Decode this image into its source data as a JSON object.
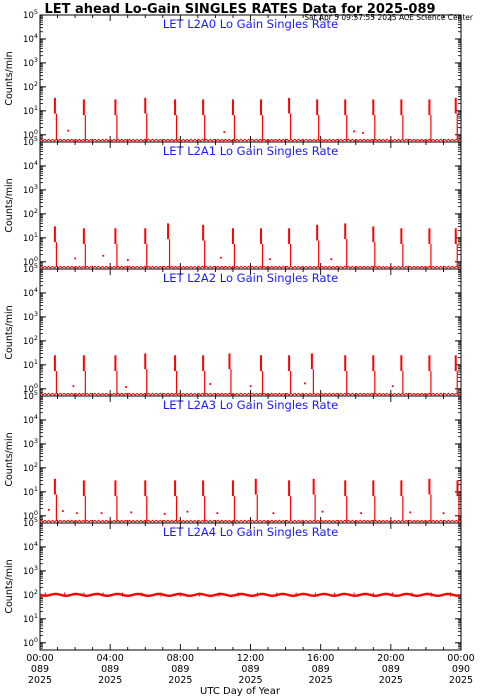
{
  "title": "LET ahead Lo-Gain SINGLES RATES Data for 2025-089",
  "timestamp": "Sat Apr  5 09:57:55 2025 ACE Science Center",
  "ylabel": "Counts/min",
  "xlabel": "UTC Day of Year",
  "colors": {
    "series": "#ff0000",
    "panel_title": "#1a1aff",
    "axis": "#000000"
  },
  "x_ticks": [
    {
      "time": "00:00",
      "day": "089",
      "year": "2025",
      "hour": 0
    },
    {
      "time": "04:00",
      "day": "089",
      "year": "2025",
      "hour": 4
    },
    {
      "time": "08:00",
      "day": "089",
      "year": "2025",
      "hour": 8
    },
    {
      "time": "12:00",
      "day": "089",
      "year": "2025",
      "hour": 12
    },
    {
      "time": "16:00",
      "day": "089",
      "year": "2025",
      "hour": 16
    },
    {
      "time": "20:00",
      "day": "089",
      "year": "2025",
      "hour": 20
    },
    {
      "time": "00:00",
      "day": "090",
      "year": "2025",
      "hour": 24
    }
  ],
  "chart_data": [
    {
      "type": "scatter",
      "title": "LET L2A0 Lo Gain Singles Rate",
      "x_unit": "hour of day 089 (UTC)",
      "y_scale": "log",
      "ylim": [
        0.5,
        100000
      ],
      "y_tick_labels": [
        "10^0",
        "10^1",
        "10^2",
        "10^3",
        "10^4",
        "10^5"
      ],
      "baseline": 0.6,
      "spikes": [
        {
          "hour": 0.85,
          "top": 35
        },
        {
          "hour": 2.5,
          "top": 30
        },
        {
          "hour": 4.3,
          "top": 30
        },
        {
          "hour": 6.0,
          "top": 35
        },
        {
          "hour": 7.7,
          "top": 30
        },
        {
          "hour": 9.3,
          "top": 30
        },
        {
          "hour": 11.0,
          "top": 30
        },
        {
          "hour": 12.6,
          "top": 30
        },
        {
          "hour": 14.2,
          "top": 35
        },
        {
          "hour": 15.8,
          "top": 30
        },
        {
          "hour": 17.4,
          "top": 30
        },
        {
          "hour": 19.0,
          "top": 30
        },
        {
          "hour": 20.6,
          "top": 30
        },
        {
          "hour": 22.2,
          "top": 30
        },
        {
          "hour": 23.7,
          "top": 35
        }
      ],
      "scatter": [
        {
          "hour": 1.6,
          "y": 1.5
        },
        {
          "hour": 10.5,
          "y": 1.3
        },
        {
          "hour": 17.9,
          "y": 1.4
        },
        {
          "hour": 18.4,
          "y": 1.2
        }
      ]
    },
    {
      "type": "scatter",
      "title": "LET L2A1 Lo Gain Singles Rate",
      "x_unit": "hour of day 089 (UTC)",
      "y_scale": "log",
      "ylim": [
        0.5,
        100000
      ],
      "y_tick_labels": [
        "10^0",
        "10^1",
        "10^2",
        "10^3",
        "10^4",
        "10^5"
      ],
      "baseline": 0.6,
      "spikes": [
        {
          "hour": 0.85,
          "top": 30
        },
        {
          "hour": 2.5,
          "top": 25
        },
        {
          "hour": 4.3,
          "top": 25
        },
        {
          "hour": 6.0,
          "top": 25
        },
        {
          "hour": 7.3,
          "top": 40
        },
        {
          "hour": 9.3,
          "top": 35
        },
        {
          "hour": 11.0,
          "top": 25
        },
        {
          "hour": 12.6,
          "top": 25
        },
        {
          "hour": 14.2,
          "top": 25
        },
        {
          "hour": 15.8,
          "top": 35
        },
        {
          "hour": 17.4,
          "top": 40
        },
        {
          "hour": 19.0,
          "top": 30
        },
        {
          "hour": 20.6,
          "top": 25
        },
        {
          "hour": 22.2,
          "top": 25
        },
        {
          "hour": 23.7,
          "top": 25
        }
      ],
      "scatter": [
        {
          "hour": 2.0,
          "y": 1.4
        },
        {
          "hour": 3.6,
          "y": 1.8
        },
        {
          "hour": 5.0,
          "y": 1.2
        },
        {
          "hour": 10.3,
          "y": 1.5
        },
        {
          "hour": 13.1,
          "y": 1.3
        },
        {
          "hour": 16.6,
          "y": 1.3
        }
      ]
    },
    {
      "type": "scatter",
      "title": "LET L2A2 Lo Gain Singles Rate",
      "x_unit": "hour of day 089 (UTC)",
      "y_scale": "log",
      "ylim": [
        0.5,
        100000
      ],
      "y_tick_labels": [
        "10^0",
        "10^1",
        "10^2",
        "10^3",
        "10^4",
        "10^5"
      ],
      "baseline": 0.6,
      "spikes": [
        {
          "hour": 0.85,
          "top": 25
        },
        {
          "hour": 2.5,
          "top": 25
        },
        {
          "hour": 4.3,
          "top": 25
        },
        {
          "hour": 6.0,
          "top": 30
        },
        {
          "hour": 7.7,
          "top": 25
        },
        {
          "hour": 9.3,
          "top": 25
        },
        {
          "hour": 10.8,
          "top": 30
        },
        {
          "hour": 12.6,
          "top": 25
        },
        {
          "hour": 14.2,
          "top": 25
        },
        {
          "hour": 15.5,
          "top": 30
        },
        {
          "hour": 17.4,
          "top": 25
        },
        {
          "hour": 19.0,
          "top": 25
        },
        {
          "hour": 20.6,
          "top": 25
        },
        {
          "hour": 22.2,
          "top": 25
        },
        {
          "hour": 23.7,
          "top": 25
        }
      ],
      "scatter": [
        {
          "hour": 1.9,
          "y": 1.3
        },
        {
          "hour": 4.9,
          "y": 1.2
        },
        {
          "hour": 9.7,
          "y": 1.6
        },
        {
          "hour": 12.0,
          "y": 1.3
        },
        {
          "hour": 15.1,
          "y": 1.7
        },
        {
          "hour": 20.1,
          "y": 1.3
        }
      ]
    },
    {
      "type": "scatter",
      "title": "LET L2A3 Lo Gain Singles Rate",
      "x_unit": "hour of day 089 (UTC)",
      "y_scale": "log",
      "ylim": [
        0.5,
        100000
      ],
      "y_tick_labels": [
        "10^0",
        "10^1",
        "10^2",
        "10^3",
        "10^4",
        "10^5"
      ],
      "baseline": 0.6,
      "spikes": [
        {
          "hour": 0.85,
          "top": 35
        },
        {
          "hour": 2.5,
          "top": 30
        },
        {
          "hour": 4.3,
          "top": 30
        },
        {
          "hour": 6.0,
          "top": 30
        },
        {
          "hour": 7.7,
          "top": 30
        },
        {
          "hour": 9.3,
          "top": 30
        },
        {
          "hour": 11.0,
          "top": 30
        },
        {
          "hour": 12.3,
          "top": 35
        },
        {
          "hour": 14.2,
          "top": 30
        },
        {
          "hour": 15.6,
          "top": 35
        },
        {
          "hour": 17.4,
          "top": 30
        },
        {
          "hour": 19.0,
          "top": 30
        },
        {
          "hour": 20.6,
          "top": 30
        },
        {
          "hour": 22.2,
          "top": 35
        },
        {
          "hour": 23.8,
          "top": 30
        }
      ],
      "scatter": [
        {
          "hour": 0.5,
          "y": 1.8
        },
        {
          "hour": 1.3,
          "y": 1.6
        },
        {
          "hour": 2.1,
          "y": 1.3
        },
        {
          "hour": 3.5,
          "y": 1.3
        },
        {
          "hour": 5.2,
          "y": 1.4
        },
        {
          "hour": 7.1,
          "y": 1.2
        },
        {
          "hour": 8.4,
          "y": 1.5
        },
        {
          "hour": 10.1,
          "y": 1.3
        },
        {
          "hour": 13.3,
          "y": 1.3
        },
        {
          "hour": 16.1,
          "y": 1.5
        },
        {
          "hour": 18.3,
          "y": 1.3
        },
        {
          "hour": 21.1,
          "y": 1.4
        },
        {
          "hour": 23.0,
          "y": 1.3
        }
      ]
    },
    {
      "type": "line",
      "title": "LET L2A4 Lo Gain Singles Rate",
      "x_unit": "hour of day 089 (UTC)",
      "y_scale": "log",
      "ylim": [
        0.5,
        100000
      ],
      "y_tick_labels": [
        "10^0",
        "10^1",
        "10^2",
        "10^3",
        "10^4",
        "10^5"
      ],
      "level": 100,
      "level_band": [
        85,
        125
      ],
      "spikes": [],
      "scatter": []
    }
  ]
}
